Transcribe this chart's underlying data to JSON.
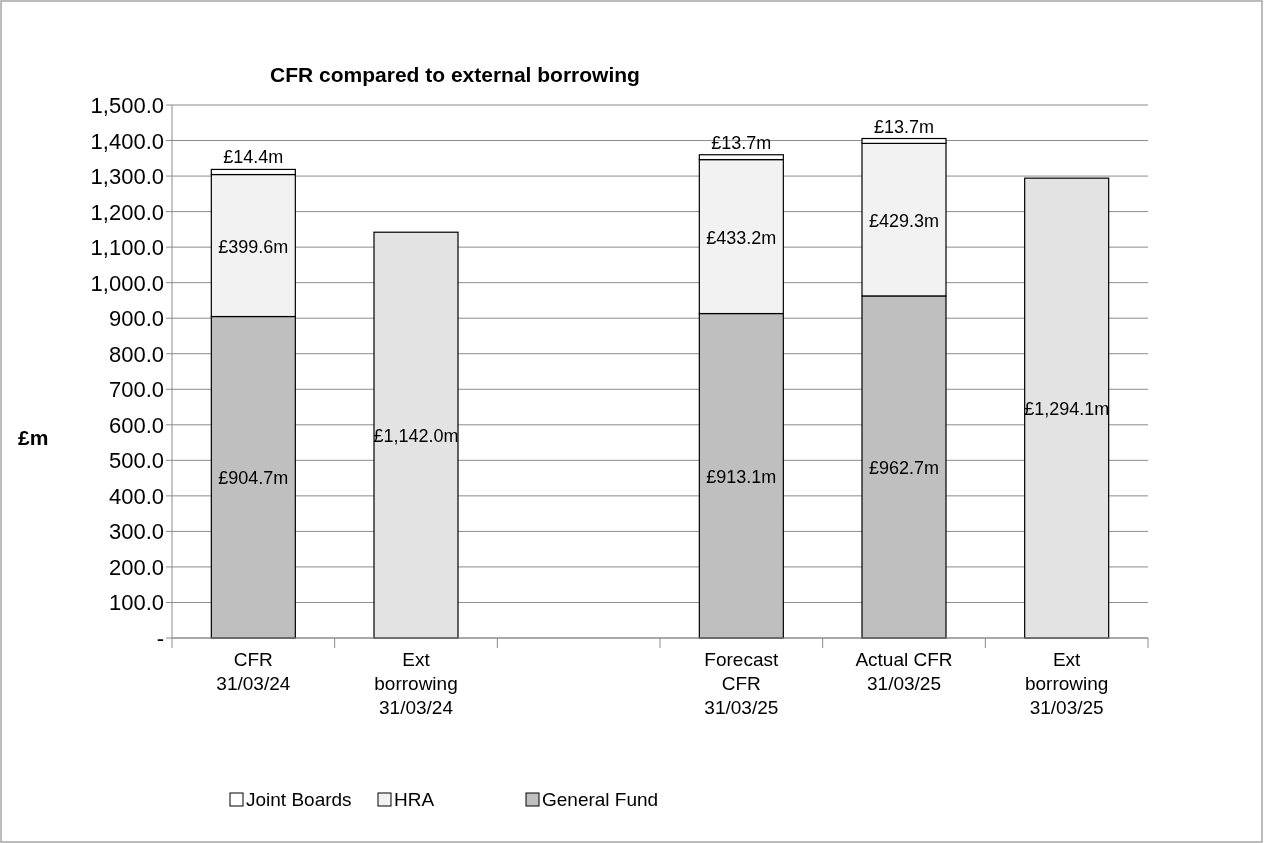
{
  "chart_data": {
    "type": "bar",
    "stacked": true,
    "title": "CFR compared to external borrowing",
    "ylabel": "£m",
    "categories": [
      "CFR\n31/03/24",
      "Ext\nborrowing\n31/03/24",
      null,
      "Forecast\nCFR\n31/03/25",
      "Actual CFR\n31/03/25",
      "Ext\nborrowing\n31/03/25"
    ],
    "series": [
      {
        "name": "General Fund",
        "color": "#bfbfbf",
        "values": [
          904.7,
          null,
          null,
          913.1,
          962.7,
          null
        ],
        "value_labels": [
          "£904.7m",
          null,
          null,
          "£913.1m",
          "£962.7m",
          null
        ]
      },
      {
        "name": "HRA",
        "color": "#f2f2f2",
        "values": [
          399.6,
          null,
          null,
          433.2,
          429.3,
          null
        ],
        "value_labels": [
          "£399.6m",
          null,
          null,
          "£433.2m",
          "£429.3m",
          null
        ]
      },
      {
        "name": "Joint Boards",
        "color": "#ffffff",
        "values": [
          14.4,
          null,
          null,
          13.7,
          13.7,
          null
        ],
        "value_labels": [
          "£14.4m",
          null,
          null,
          "£13.7m",
          "£13.7m",
          null
        ]
      },
      {
        "color": "#e3e3e3",
        "values": [
          null,
          1142.0,
          null,
          null,
          null,
          1294.1
        ],
        "value_labels": [
          null,
          "£1,142.0m",
          null,
          null,
          null,
          "£1,294.1m"
        ]
      }
    ],
    "ylim": [
      0,
      1500
    ],
    "yticks": [
      {
        "value": 0,
        "label": "-"
      },
      {
        "value": 100,
        "label": "100.0"
      },
      {
        "value": 200,
        "label": "200.0"
      },
      {
        "value": 300,
        "label": "300.0"
      },
      {
        "value": 400,
        "label": "400.0"
      },
      {
        "value": 500,
        "label": "500.0"
      },
      {
        "value": 600,
        "label": "600.0"
      },
      {
        "value": 700,
        "label": "700.0"
      },
      {
        "value": 800,
        "label": "800.0"
      },
      {
        "value": 900,
        "label": "900.0"
      },
      {
        "value": 1000,
        "label": "1,000.0"
      },
      {
        "value": 1100,
        "label": "1,100.0"
      },
      {
        "value": 1200,
        "label": "1,200.0"
      },
      {
        "value": 1300,
        "label": "1,300.0"
      },
      {
        "value": 1400,
        "label": "1,400.0"
      },
      {
        "value": 1500,
        "label": "1,500.0"
      }
    ],
    "grid": "y",
    "legend": "bottom"
  }
}
